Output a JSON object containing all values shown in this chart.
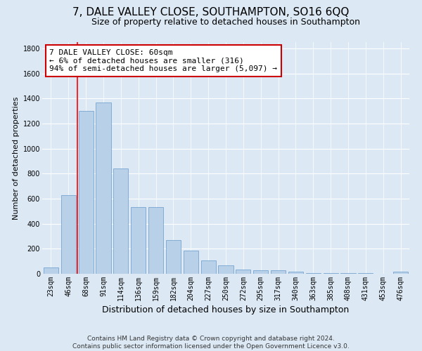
{
  "title": "7, DALE VALLEY CLOSE, SOUTHAMPTON, SO16 6QQ",
  "subtitle": "Size of property relative to detached houses in Southampton",
  "xlabel": "Distribution of detached houses by size in Southampton",
  "ylabel": "Number of detached properties",
  "categories": [
    "23sqm",
    "46sqm",
    "68sqm",
    "91sqm",
    "114sqm",
    "136sqm",
    "159sqm",
    "182sqm",
    "204sqm",
    "227sqm",
    "250sqm",
    "272sqm",
    "295sqm",
    "317sqm",
    "340sqm",
    "363sqm",
    "385sqm",
    "408sqm",
    "431sqm",
    "453sqm",
    "476sqm"
  ],
  "values": [
    50,
    630,
    1300,
    1370,
    840,
    530,
    530,
    270,
    185,
    105,
    65,
    35,
    30,
    30,
    15,
    5,
    5,
    5,
    5,
    0,
    15
  ],
  "bar_color": "#b8d0e8",
  "bar_edge_color": "#6699cc",
  "annotation_text": "7 DALE VALLEY CLOSE: 60sqm\n← 6% of detached houses are smaller (316)\n94% of semi-detached houses are larger (5,097) →",
  "annotation_box_color": "#ffffff",
  "annotation_box_edge": "#cc0000",
  "red_line_x": 1.5,
  "ylim": [
    0,
    1850
  ],
  "yticks": [
    0,
    200,
    400,
    600,
    800,
    1000,
    1200,
    1400,
    1600,
    1800
  ],
  "footer_line1": "Contains HM Land Registry data © Crown copyright and database right 2024.",
  "footer_line2": "Contains public sector information licensed under the Open Government Licence v3.0.",
  "background_color": "#dce9f5",
  "grid_color": "#ffffff",
  "title_fontsize": 11,
  "subtitle_fontsize": 9,
  "xlabel_fontsize": 9,
  "ylabel_fontsize": 8,
  "tick_fontsize": 7,
  "annotation_fontsize": 8,
  "footer_fontsize": 6.5
}
